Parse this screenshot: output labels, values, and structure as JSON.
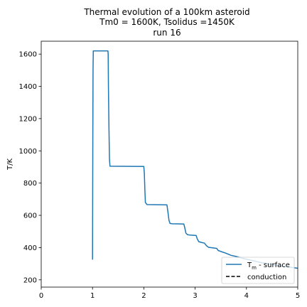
{
  "chart_data": {
    "type": "line",
    "title_lines": [
      "Thermal evolution of a 100km asteroid",
      "Tm0 = 1600K, Tsolidus =1450K",
      "run 16"
    ],
    "xlabel": "",
    "ylabel": "T/K",
    "xlim": [
      0,
      5
    ],
    "ylim": [
      155,
      1680
    ],
    "xticks": [
      0,
      1,
      2,
      3,
      4,
      5
    ],
    "yticks": [
      200,
      400,
      600,
      800,
      1000,
      1200,
      1400,
      1600
    ],
    "grid": false,
    "legend_position": "lower-right",
    "series": [
      {
        "name": "T$_m$ - surface",
        "legend_label_main": "T",
        "legend_label_sub": "m",
        "legend_label_rest": " - surface",
        "color": "#1f77b4",
        "style": "solid",
        "x": [
          1.0,
          1.005,
          1.01,
          1.015,
          1.02,
          1.025,
          1.3,
          1.305,
          1.31,
          1.32,
          1.33,
          1.34,
          2.0,
          2.01,
          2.02,
          2.03,
          2.06,
          2.45,
          2.47,
          2.49,
          2.51,
          2.55,
          2.78,
          2.8,
          2.82,
          2.85,
          2.9,
          3.02,
          3.04,
          3.07,
          3.12,
          3.18,
          3.22,
          3.26,
          3.3,
          3.42,
          3.45,
          3.5,
          3.6,
          3.7,
          3.8,
          3.9,
          4.0,
          4.1,
          4.2,
          4.3,
          4.4,
          4.5,
          4.6,
          4.7,
          4.8,
          4.9,
          5.0
        ],
        "values": [
          325,
          1000,
          1500,
          1620,
          1620,
          1620,
          1620,
          1600,
          1400,
          1150,
          950,
          905,
          903,
          860,
          760,
          680,
          667,
          665,
          620,
          570,
          550,
          548,
          546,
          520,
          490,
          480,
          478,
          475,
          455,
          437,
          432,
          428,
          412,
          402,
          400,
          395,
          382,
          376,
          365,
          352,
          345,
          336,
          328,
          321,
          313,
          306,
          300,
          295,
          290,
          285,
          281,
          276,
          272
        ]
      },
      {
        "name": "conduction",
        "color": "#000000",
        "style": "dashed",
        "x": [],
        "values": []
      }
    ]
  }
}
